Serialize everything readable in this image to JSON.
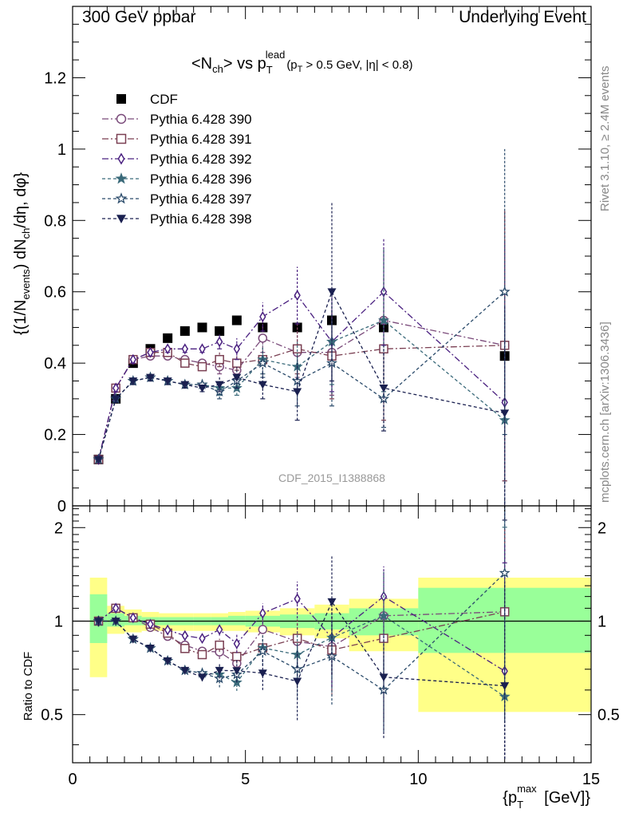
{
  "header": {
    "left": "300 GeV ppbar",
    "right": "Underlying Event",
    "plot_title_main": "<N",
    "plot_title_sub": "ch",
    "plot_title_mid": "> vs p",
    "plot_title_sub2": "T",
    "plot_title_sup2": "lead",
    "plot_title_cut": "(p",
    "plot_title_cut_sub": "T",
    "plot_title_cut_rest": " > 0.5 GeV, |η| < 0.8)"
  },
  "side_labels": {
    "rivet": "Rivet 3.1.10, ≥ 2.4M events",
    "mcplots": "mcplots.cern.ch [arXiv:1306.3436]"
  },
  "watermark": "CDF_2015_I1388868",
  "chart_data": {
    "type": "scatter",
    "xlabel": "{p_T^max [GeV]}",
    "ylabel": "{(1/N_events) dN_ch/dη, dφ}",
    "ratio_ylabel": "Ratio to CDF",
    "xlim": [
      0,
      15
    ],
    "ylim": [
      0,
      1.4
    ],
    "ratio_ylim": [
      0.35,
      2.35
    ],
    "x_ticks": [
      "0",
      "5",
      "10",
      "15"
    ],
    "y_ticks": [
      "0",
      "0.2",
      "0.4",
      "0.6",
      "0.8",
      "1",
      "1.2"
    ],
    "ratio_ticks": [
      "0.5",
      "1",
      "2"
    ],
    "x": [
      0.75,
      1.25,
      1.75,
      2.25,
      2.75,
      3.25,
      3.75,
      4.25,
      4.75,
      5.5,
      6.5,
      7.5,
      9.0,
      12.5
    ],
    "legend_position": "top-left",
    "series": [
      {
        "name": "CDF",
        "color": "#000000",
        "marker": "square-filled",
        "dash": "none",
        "values": [
          0.13,
          0.3,
          0.4,
          0.44,
          0.47,
          0.49,
          0.5,
          0.49,
          0.52,
          0.5,
          0.5,
          0.52,
          0.5,
          0.42
        ]
      },
      {
        "name": "Pythia 6.428 390",
        "color": "#7a4a7a",
        "marker": "circle-open",
        "dash": "8,3,2,3",
        "values": [
          0.13,
          0.33,
          0.41,
          0.42,
          0.42,
          0.41,
          0.4,
          0.39,
          0.38,
          0.47,
          0.43,
          0.43,
          0.52,
          0.45
        ]
      },
      {
        "name": "Pythia 6.428 391",
        "color": "#7a3f52",
        "marker": "square-open",
        "dash": "8,3,2,3",
        "values": [
          0.13,
          0.33,
          0.41,
          0.43,
          0.43,
          0.4,
          0.39,
          0.41,
          0.4,
          0.41,
          0.44,
          0.42,
          0.44,
          0.45
        ]
      },
      {
        "name": "Pythia 6.428 392",
        "color": "#4a2080",
        "marker": "diamond-open",
        "dash": "8,3,2,3",
        "values": [
          0.13,
          0.33,
          0.41,
          0.43,
          0.44,
          0.44,
          0.44,
          0.46,
          0.44,
          0.53,
          0.59,
          0.46,
          0.6,
          0.29
        ]
      },
      {
        "name": "Pythia 6.428 396",
        "color": "#3a6a7a",
        "marker": "star-filled",
        "dash": "4,3",
        "values": [
          0.13,
          0.3,
          0.35,
          0.36,
          0.35,
          0.34,
          0.34,
          0.33,
          0.33,
          0.41,
          0.39,
          0.46,
          0.52,
          0.24
        ]
      },
      {
        "name": "Pythia 6.428 397",
        "color": "#2a4a6a",
        "marker": "star-open",
        "dash": "4,3",
        "values": [
          0.13,
          0.3,
          0.35,
          0.36,
          0.35,
          0.34,
          0.34,
          0.32,
          0.35,
          0.4,
          0.35,
          0.4,
          0.3,
          0.6
        ]
      },
      {
        "name": "Pythia 6.428 398",
        "color": "#1a2050",
        "marker": "triangle-down-filled",
        "dash": "4,3",
        "values": [
          0.13,
          0.3,
          0.35,
          0.36,
          0.35,
          0.34,
          0.33,
          0.34,
          0.36,
          0.34,
          0.32,
          0.6,
          0.33,
          0.26
        ]
      }
    ],
    "errors": {
      "Pythia 6.428 390": [
        0.005,
        0.01,
        0.01,
        0.01,
        0.01,
        0.01,
        0.01,
        0.02,
        0.02,
        0.04,
        0.07,
        0.12,
        0.2,
        0.38
      ],
      "Pythia 6.428 391": [
        0.005,
        0.01,
        0.01,
        0.01,
        0.01,
        0.01,
        0.01,
        0.02,
        0.02,
        0.04,
        0.07,
        0.12,
        0.2,
        0.38
      ],
      "Pythia 6.428 392": [
        0.005,
        0.01,
        0.01,
        0.01,
        0.01,
        0.01,
        0.01,
        0.02,
        0.03,
        0.04,
        0.08,
        0.14,
        0.15,
        0.45
      ],
      "Pythia 6.428 396": [
        0.005,
        0.01,
        0.01,
        0.01,
        0.01,
        0.01,
        0.01,
        0.02,
        0.02,
        0.04,
        0.07,
        0.12,
        0.2,
        0.3
      ],
      "Pythia 6.428 397": [
        0.005,
        0.01,
        0.01,
        0.01,
        0.01,
        0.01,
        0.01,
        0.02,
        0.02,
        0.04,
        0.07,
        0.12,
        0.08,
        0.4
      ],
      "Pythia 6.428 398": [
        0.005,
        0.01,
        0.01,
        0.01,
        0.01,
        0.01,
        0.01,
        0.02,
        0.03,
        0.04,
        0.08,
        0.25,
        0.12,
        0.3
      ]
    },
    "ratio_bands": [
      {
        "x0": 0.5,
        "x1": 1.0,
        "yellow": [
          0.66,
          1.38
        ],
        "green": [
          0.85,
          1.22
        ]
      },
      {
        "x0": 1.0,
        "x1": 1.5,
        "yellow": [
          0.91,
          1.12
        ],
        "green": [
          0.96,
          1.06
        ]
      },
      {
        "x0": 1.5,
        "x1": 2.0,
        "yellow": [
          0.92,
          1.09
        ],
        "green": [
          0.97,
          1.04
        ]
      },
      {
        "x0": 2.0,
        "x1": 2.5,
        "yellow": [
          0.93,
          1.07
        ],
        "green": [
          0.97,
          1.03
        ]
      },
      {
        "x0": 2.5,
        "x1": 3.0,
        "yellow": [
          0.93,
          1.06
        ],
        "green": [
          0.97,
          1.03
        ]
      },
      {
        "x0": 3.0,
        "x1": 3.5,
        "yellow": [
          0.93,
          1.06
        ],
        "green": [
          0.97,
          1.03
        ]
      },
      {
        "x0": 3.5,
        "x1": 4.0,
        "yellow": [
          0.93,
          1.06
        ],
        "green": [
          0.97,
          1.03
        ]
      },
      {
        "x0": 4.0,
        "x1": 4.5,
        "yellow": [
          0.93,
          1.06
        ],
        "green": [
          0.97,
          1.03
        ]
      },
      {
        "x0": 4.5,
        "x1": 5.0,
        "yellow": [
          0.93,
          1.07
        ],
        "green": [
          0.97,
          1.04
        ]
      },
      {
        "x0": 5.0,
        "x1": 6.0,
        "yellow": [
          0.92,
          1.08
        ],
        "green": [
          0.96,
          1.04
        ]
      },
      {
        "x0": 6.0,
        "x1": 7.0,
        "yellow": [
          0.9,
          1.1
        ],
        "green": [
          0.95,
          1.05
        ]
      },
      {
        "x0": 7.0,
        "x1": 8.0,
        "yellow": [
          0.88,
          1.13
        ],
        "green": [
          0.94,
          1.06
        ]
      },
      {
        "x0": 8.0,
        "x1": 10.0,
        "yellow": [
          0.8,
          1.18
        ],
        "green": [
          0.9,
          1.1
        ]
      },
      {
        "x0": 10.0,
        "x1": 15.0,
        "yellow": [
          0.51,
          1.38
        ],
        "green": [
          0.79,
          1.28
        ]
      }
    ]
  }
}
